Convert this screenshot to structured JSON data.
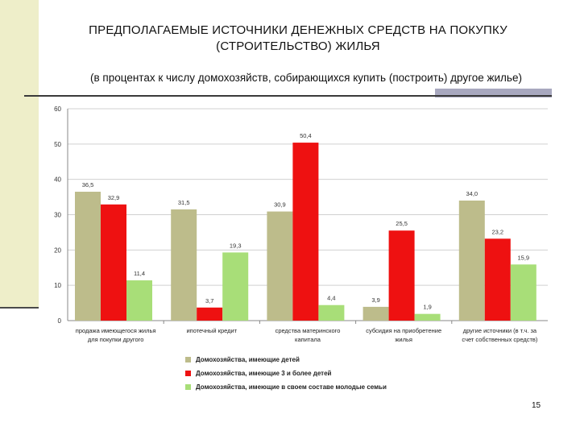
{
  "slide": {
    "title": "ПРЕДПОЛАГАЕМЫЕ ИСТОЧНИКИ ДЕНЕЖНЫХ СРЕДСТВ НА ПОКУПКУ (СТРОИТЕЛЬСТВО) ЖИЛЬЯ",
    "subtitle": "(в процентах к числу домохозяйств, собирающихся купить (построить) другое жилье)",
    "page_number": "15"
  },
  "chart_data": {
    "type": "bar",
    "categories": [
      [
        "продажа имеющегося жилья",
        "для покупки другого"
      ],
      [
        "ипотечный кредит"
      ],
      [
        "средства материнского",
        "капитала"
      ],
      [
        "субсидия на приобретение",
        "жилья"
      ],
      [
        "другие источники (в т.ч. за",
        "счет собственных средств)"
      ]
    ],
    "series": [
      {
        "name": "Домохозяйства, имеющие детей",
        "color": "#bdbc8b",
        "values": [
          36.5,
          31.5,
          30.9,
          3.9,
          34.0
        ],
        "labels": [
          "36,5",
          "31,5",
          "30,9",
          "3,9",
          "34,0"
        ]
      },
      {
        "name": "Домохозяйства, имеющие 3 и более детей",
        "color": "#ee1111",
        "values": [
          32.9,
          3.7,
          50.4,
          25.5,
          23.2
        ],
        "labels": [
          "32,9",
          "3,7",
          "50,4",
          "25,5",
          "23,2"
        ]
      },
      {
        "name": "Домохозяйства, имеющие в своем составе молодые семьи",
        "color": "#a8de78",
        "values": [
          11.4,
          19.3,
          4.4,
          1.9,
          15.9
        ],
        "labels": [
          "11,4",
          "19,3",
          "4,4",
          "1,9",
          "15,9"
        ]
      }
    ],
    "ylim": [
      0,
      60
    ],
    "yticks": [
      "0",
      "10",
      "20",
      "30",
      "40",
      "50",
      "60"
    ],
    "grid": true,
    "legend_position": "bottom"
  }
}
